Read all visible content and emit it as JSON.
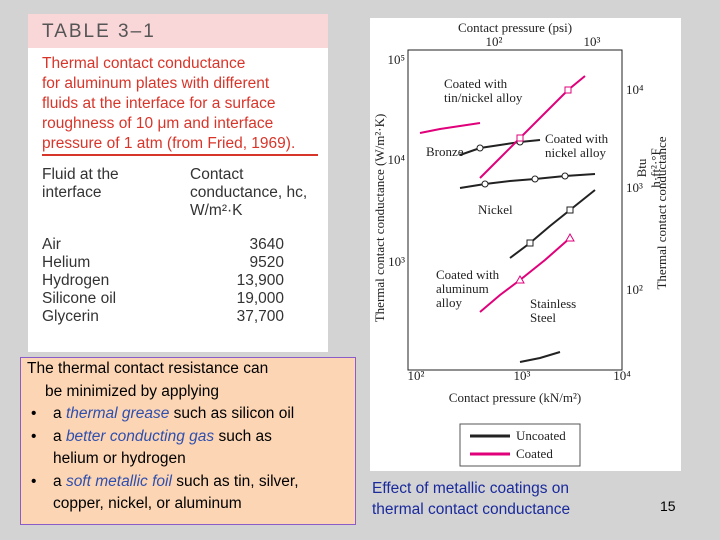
{
  "table": {
    "title": "TABLE 3–1",
    "caption_lines": [
      "Thermal contact conductance",
      "for aluminum plates with different",
      "fluids at the interface for a surface",
      "roughness of 10 μm and interface",
      "pressure of 1 atm (from Fried, 1969)."
    ],
    "columns": [
      [
        "Fluid at the",
        "interface"
      ],
      [
        "Contact",
        "conductance, hc,",
        "W/m²·K"
      ]
    ],
    "rows": [
      [
        "Air",
        "3640"
      ],
      [
        "Helium",
        "9520"
      ],
      [
        "Hydrogen",
        "13,900"
      ],
      [
        "Silicone oil",
        "19,000"
      ],
      [
        "Glycerin",
        "37,700"
      ]
    ]
  },
  "textbox": {
    "intro_lines": [
      "The thermal contact resistance can",
      "be minimized by applying"
    ],
    "bullets": [
      {
        "prefix": "a ",
        "highlight": "thermal grease",
        "rest_lines": [
          " such as silicon oil"
        ]
      },
      {
        "prefix": "a ",
        "highlight": "better conducting gas",
        "rest_lines": [
          " such as",
          "helium or hydrogen"
        ]
      },
      {
        "prefix": "a ",
        "highlight": "soft metallic foil",
        "rest_lines": [
          " such as tin, silver,",
          "copper, nickel, or aluminum"
        ]
      }
    ]
  },
  "figure": {
    "top_axis_label": "Contact pressure (psi)",
    "top_ticks": [
      "10²",
      "10³"
    ],
    "left_axis_label": "Thermal contact conductance (W/m²·K)",
    "left_ticks": [
      "10⁵",
      "10⁴",
      "10³"
    ],
    "right_axis_label": "Thermal contact conductance",
    "right_unit": [
      "Btu",
      "h·ft²·°F"
    ],
    "right_ticks": [
      "10⁴",
      "10³",
      "10²"
    ],
    "bottom_ticks": [
      "10²",
      "10³",
      "10⁴"
    ],
    "bottom_axis_label": "Contact pressure (kN/m²)",
    "annotations": [
      [
        "Coated with",
        "tin/nickel alloy"
      ],
      [
        "Bronze"
      ],
      [
        "Coated with",
        "nickel alloy"
      ],
      [
        "Nickel"
      ],
      [
        "Coated with",
        "aluminum",
        "alloy"
      ],
      [
        "Stainless",
        "Steel"
      ]
    ],
    "legend": [
      "Uncoated",
      "Coated"
    ]
  },
  "caption_lines": [
    "Effect of metallic coatings on",
    "thermal contact conductance"
  ],
  "page_number": "15"
}
